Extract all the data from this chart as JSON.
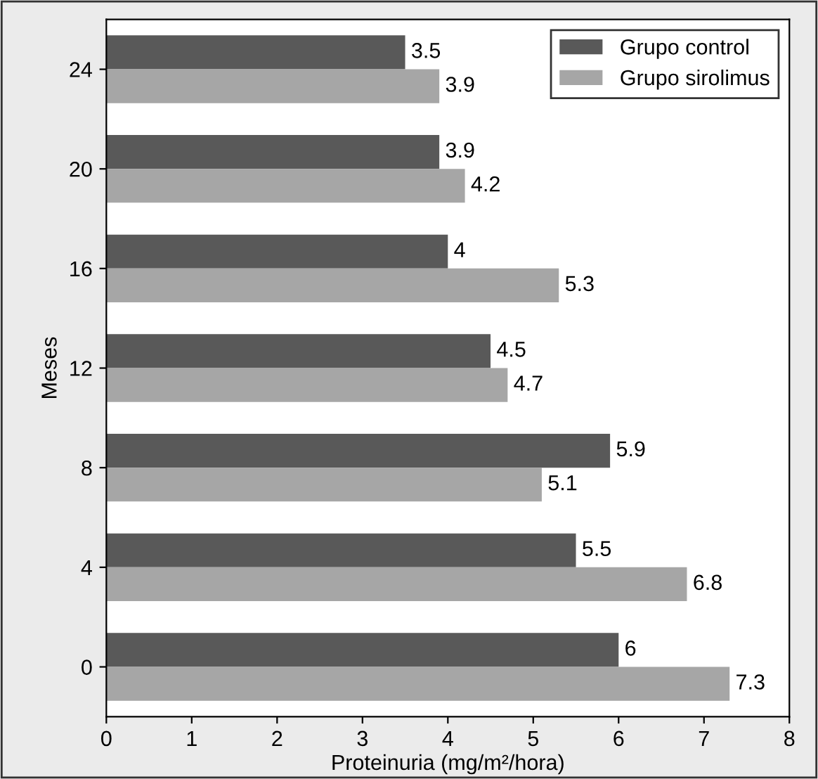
{
  "chart_data": {
    "type": "bar",
    "orientation": "horizontal",
    "xlabel": "Proteinuria (mg/m²/hora)",
    "ylabel": "Meses",
    "categories": [
      "24",
      "20",
      "16",
      "12",
      "8",
      "4",
      "0"
    ],
    "series": [
      {
        "name": "Grupo control",
        "color": "#595959",
        "values": [
          3.5,
          3.9,
          4,
          4.5,
          5.9,
          5.5,
          6
        ]
      },
      {
        "name": "Grupo sirolimus",
        "color": "#a6a6a6",
        "values": [
          3.9,
          4.2,
          5.3,
          4.7,
          5.1,
          6.8,
          7.3
        ]
      }
    ],
    "xlim": [
      0,
      8
    ],
    "xticks": [
      0,
      1,
      2,
      3,
      4,
      5,
      6,
      7,
      8
    ],
    "data_labels": true,
    "legend": "top right",
    "grid": false
  }
}
